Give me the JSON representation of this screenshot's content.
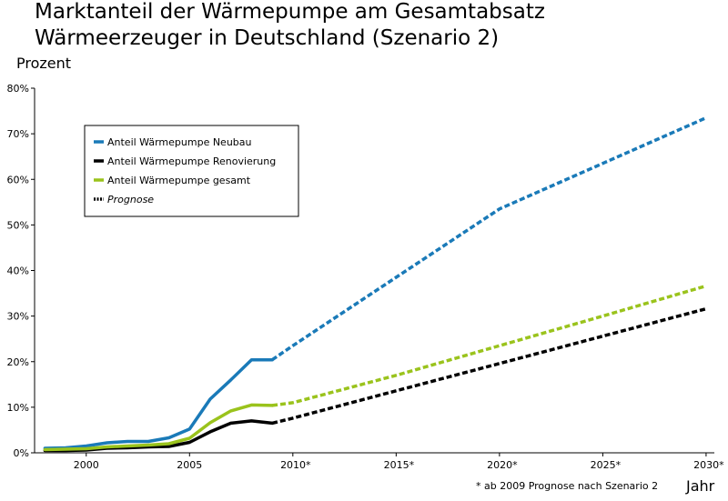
{
  "title_line1": "Marktanteil der Wärmepumpe am Gesamtabsatz",
  "title_line2": "Wärmeerzeuger in Deutschland (Szenario 2)",
  "ylabel": "Prozent",
  "xlabel": "Jahr",
  "footnote": "* ab 2009 Prognose nach Szenario 2",
  "chart_data": {
    "type": "line",
    "xlim": [
      1997.5,
      2030.4
    ],
    "ylim": [
      0,
      80
    ],
    "x_ticks": [
      {
        "value": 2000,
        "label": "2000"
      },
      {
        "value": 2005,
        "label": "2005"
      },
      {
        "value": 2010,
        "label": "2010*"
      },
      {
        "value": 2015,
        "label": "2015*"
      },
      {
        "value": 2020,
        "label": "2020*"
      },
      {
        "value": 2025,
        "label": "2025*"
      },
      {
        "value": 2030,
        "label": "2030*"
      }
    ],
    "y_ticks": [
      {
        "value": 0,
        "label": "0%"
      },
      {
        "value": 10,
        "label": "10%"
      },
      {
        "value": 20,
        "label": "20%"
      },
      {
        "value": 30,
        "label": "30%"
      },
      {
        "value": 40,
        "label": "40%"
      },
      {
        "value": 50,
        "label": "50%"
      },
      {
        "value": 60,
        "label": "60%"
      },
      {
        "value": 70,
        "label": "70%"
      },
      {
        "value": 80,
        "label": "80%"
      }
    ],
    "forecast_from": 2009,
    "series": [
      {
        "name": "Anteil Wärmepumpe Neubau",
        "color": "#1a7ab8",
        "actual": [
          [
            1998,
            1.0
          ],
          [
            1999,
            1.1
          ],
          [
            2000,
            1.5
          ],
          [
            2001,
            2.2
          ],
          [
            2002,
            2.5
          ],
          [
            2003,
            2.5
          ],
          [
            2004,
            3.3
          ],
          [
            2005,
            5.2
          ],
          [
            2006,
            11.8
          ],
          [
            2007,
            16.0
          ],
          [
            2008,
            20.4
          ],
          [
            2009,
            20.4
          ]
        ],
        "forecast": [
          [
            2009,
            20.4
          ],
          [
            2010,
            23.5
          ],
          [
            2015,
            38.5
          ],
          [
            2020,
            53.5
          ],
          [
            2025,
            63.5
          ],
          [
            2030,
            73.5
          ]
        ]
      },
      {
        "name": "Anteil Wärmepumpe Renovierung",
        "color": "#000000",
        "actual": [
          [
            1998,
            0.5
          ],
          [
            1999,
            0.5
          ],
          [
            2000,
            0.6
          ],
          [
            2001,
            1.0
          ],
          [
            2002,
            1.1
          ],
          [
            2003,
            1.3
          ],
          [
            2004,
            1.4
          ],
          [
            2005,
            2.3
          ],
          [
            2006,
            4.6
          ],
          [
            2007,
            6.5
          ],
          [
            2008,
            7.0
          ],
          [
            2009,
            6.5
          ]
        ],
        "forecast": [
          [
            2009,
            6.5
          ],
          [
            2010,
            7.6
          ],
          [
            2015,
            13.6
          ],
          [
            2020,
            19.6
          ],
          [
            2025,
            25.6
          ],
          [
            2030,
            31.6
          ]
        ]
      },
      {
        "name": "Anteil Wärmepumpe gesamt",
        "color": "#9ac31c",
        "actual": [
          [
            1998,
            0.7
          ],
          [
            1999,
            0.8
          ],
          [
            2000,
            0.9
          ],
          [
            2001,
            1.3
          ],
          [
            2002,
            1.5
          ],
          [
            2003,
            1.7
          ],
          [
            2004,
            2.0
          ],
          [
            2005,
            3.2
          ],
          [
            2006,
            6.6
          ],
          [
            2007,
            9.2
          ],
          [
            2008,
            10.5
          ],
          [
            2009,
            10.4
          ]
        ],
        "forecast": [
          [
            2009,
            10.4
          ],
          [
            2010,
            11.0
          ],
          [
            2015,
            17.0
          ],
          [
            2020,
            23.5
          ],
          [
            2025,
            30.0
          ],
          [
            2030,
            36.6
          ]
        ]
      }
    ],
    "legend": {
      "position": "top-left",
      "entries": [
        {
          "label": "Anteil Wärmepumpe Neubau",
          "color": "#1a7ab8",
          "style": "solid",
          "italic": false
        },
        {
          "label": "Anteil Wärmepumpe Renovierung",
          "color": "#000000",
          "style": "solid",
          "italic": false
        },
        {
          "label": "Anteil Wärmepumpe gesamt",
          "color": "#9ac31c",
          "style": "solid",
          "italic": false
        },
        {
          "label": "Prognose",
          "color": "#000000",
          "style": "dotted",
          "italic": true
        }
      ]
    }
  }
}
